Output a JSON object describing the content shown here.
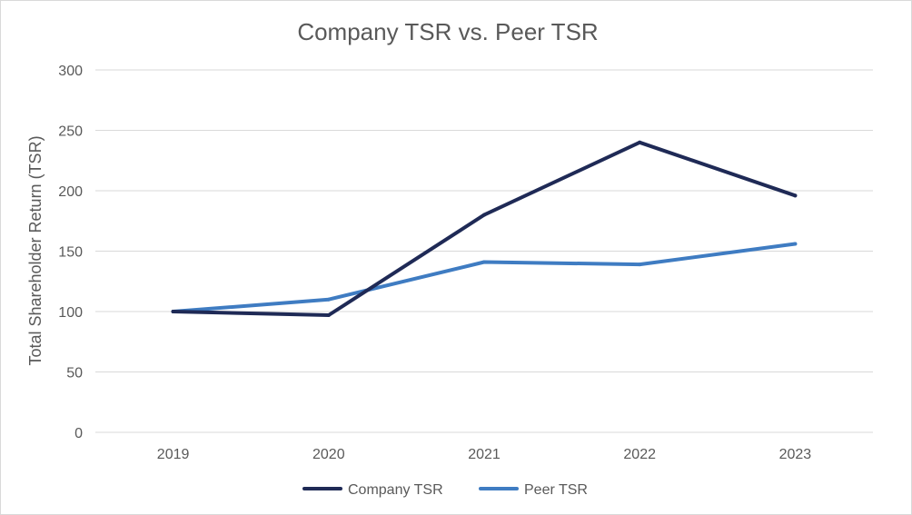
{
  "chart_data": {
    "type": "line",
    "title": "Company TSR vs. Peer TSR",
    "xlabel": "",
    "ylabel": "Total Shareholder Return (TSR)",
    "categories": [
      "2019",
      "2020",
      "2021",
      "2022",
      "2023"
    ],
    "ylim": [
      0,
      300
    ],
    "yticks": [
      0,
      50,
      100,
      150,
      200,
      250,
      300
    ],
    "grid": true,
    "legend_position": "bottom",
    "series": [
      {
        "name": "Company TSR",
        "color": "#1f2a56",
        "values": [
          100,
          97,
          180,
          240,
          196
        ]
      },
      {
        "name": "Peer TSR",
        "color": "#3f7cc2",
        "values": [
          100,
          110,
          141,
          139,
          156
        ]
      }
    ]
  }
}
